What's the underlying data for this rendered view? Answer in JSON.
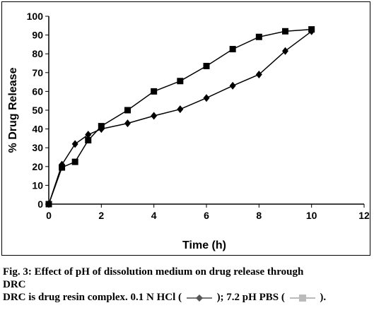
{
  "chart_data": {
    "type": "line",
    "xlabel": "Time (h)",
    "ylabel": "% Drug Release",
    "xlim": [
      0,
      12
    ],
    "ylim": [
      0,
      100
    ],
    "xticks": [
      0,
      2,
      4,
      6,
      8,
      10,
      12
    ],
    "yticks": [
      0,
      10,
      20,
      30,
      40,
      50,
      60,
      70,
      80,
      90,
      100
    ],
    "grid": false,
    "series": [
      {
        "name": "0.1 N HCl",
        "marker": "diamond",
        "color": "#000000",
        "x": [
          0,
          0.5,
          1,
          1.5,
          2,
          3,
          4,
          5,
          6,
          7,
          8,
          9,
          10
        ],
        "y": [
          0,
          21,
          32,
          37,
          40,
          43,
          47,
          50.5,
          56.5,
          63,
          69,
          81.5,
          92
        ]
      },
      {
        "name": "7.2 pH PBS",
        "marker": "square",
        "color": "#000000",
        "x": [
          0,
          0.5,
          1,
          1.5,
          2,
          3,
          4,
          5,
          6,
          7,
          8,
          9,
          10
        ],
        "y": [
          0,
          19.5,
          22.5,
          34,
          41.5,
          50,
          60,
          65.5,
          73.5,
          82.5,
          89,
          92,
          93
        ]
      }
    ]
  },
  "caption": {
    "line1": "Fig. 3: Effect of pH of dissolution medium on drug release through",
    "line2": "DRC",
    "line3_prefix": "DRC is drug resin complex. 0.1 N HCl (",
    "line3_middle": "); 7.2 pH PBS (",
    "line3_suffix": ")."
  }
}
